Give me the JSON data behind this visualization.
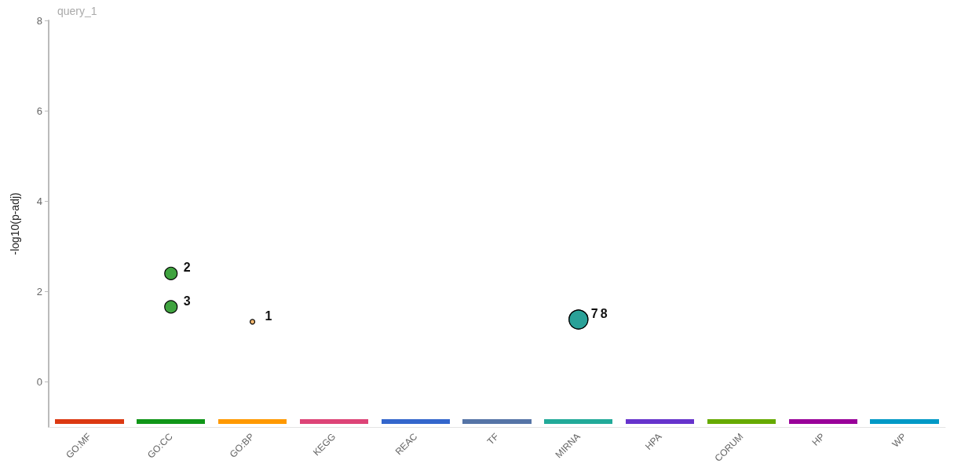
{
  "chart_data": {
    "type": "bubble",
    "title": "query_1",
    "ylabel": "-log10(p-adj)",
    "categories": [
      "GO:MF",
      "GO:CC",
      "GO:BP",
      "KEGG",
      "REAC",
      "TF",
      "MIRNA",
      "HPA",
      "CORUM",
      "HP",
      "WP"
    ],
    "ylim": [
      -1,
      8
    ],
    "yticks": [
      0,
      2,
      4,
      6,
      8
    ],
    "grid": false,
    "series": [
      {
        "color": "#3fa33f",
        "x": [
          "GO:CC",
          "GO:CC"
        ],
        "values": [
          2.4,
          1.66
        ],
        "sizes": [
          0.44,
          0.44
        ]
      },
      {
        "color": "#f5b971",
        "x": [
          "GO:BP"
        ],
        "values": [
          1.33
        ],
        "sizes": [
          0.06
        ]
      },
      {
        "color": "#2aa198",
        "x": [
          "MIRNA",
          "MIRNA"
        ],
        "values": [
          1.38,
          1.38
        ],
        "sizes": [
          1,
          1
        ]
      }
    ],
    "annotations": [
      {
        "text": "2",
        "x": "GO:CC",
        "y": 2.4
      },
      {
        "text": "3",
        "x": "GO:CC",
        "y": 1.66
      },
      {
        "text": "1",
        "x": "GO:BP",
        "y": 1.33
      },
      {
        "text": "7",
        "x": "MIRNA",
        "y": 1.38
      },
      {
        "text": "8",
        "x": "MIRNA",
        "y": 1.38
      }
    ]
  }
}
